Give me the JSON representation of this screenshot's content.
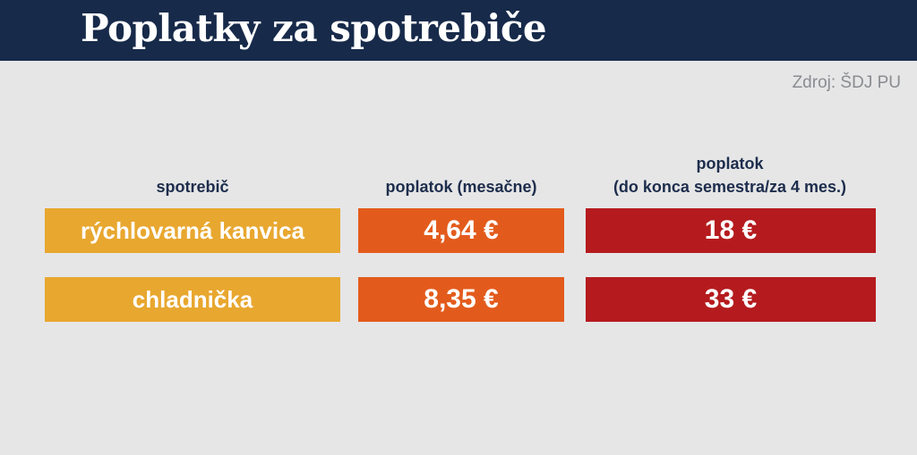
{
  "header": {
    "title": "Poplatky za spotrebiče"
  },
  "source": "Zdroj: ŠDJ PU",
  "table": {
    "headers": {
      "appliance": "spotrebič",
      "monthly": "poplatok (mesačne)",
      "semester_line1": "poplatok",
      "semester_line2": "(do konca semestra/za 4 mes.)"
    },
    "rows": [
      {
        "appliance": "rýchlovarná kanvica",
        "monthly": "4,64 €",
        "semester": "18 €"
      },
      {
        "appliance": "chladnička",
        "monthly": "8,35 €",
        "semester": "33 €"
      }
    ]
  },
  "colors": {
    "header_bg": "#172a4a",
    "background": "#e6e6e7",
    "appliance_cell": "#e8a72f",
    "monthly_cell": "#e35b1c",
    "semester_cell": "#b51b1e"
  }
}
